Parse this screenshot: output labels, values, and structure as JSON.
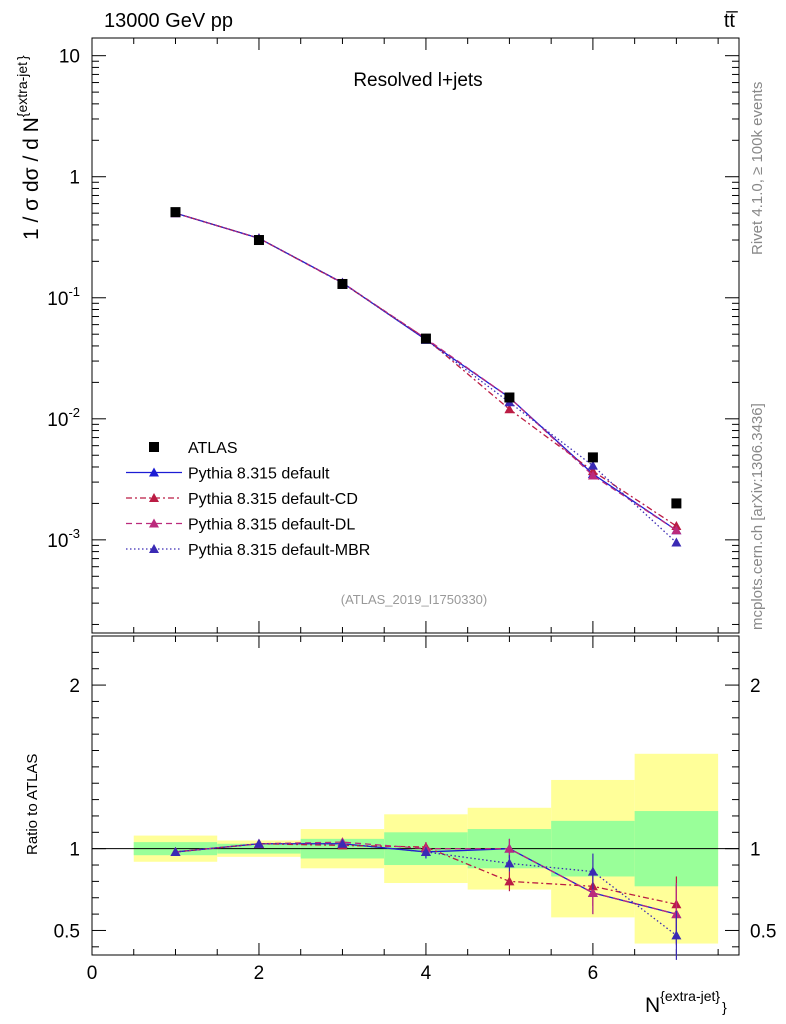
{
  "header": {
    "energy": "13000 GeV pp",
    "process": "tt̅",
    "side_rivet": "Rivet 4.1.0, ≥ 100k events",
    "side_mcplots": "mcplots.cern.ch [arXiv:1306.3436]",
    "watermark": "(ATLAS_2019_I1750330)"
  },
  "chart_data": {
    "type": "line",
    "title": "Resolved l+jets",
    "xlabel": "N",
    "xlabel_sup": "{extra-jet}",
    "xlabel_close": "}",
    "ylabel": "1 / σ dσ / d N",
    "ylabel_sup": "{extra-jet",
    "ylabel_close": "}",
    "ratio_ylabel": "Ratio to ATLAS",
    "xlim": [
      0,
      7.75
    ],
    "ylim": [
      0.00017,
      14
    ],
    "ratio_ylim": [
      0.35,
      2.3
    ],
    "x_ticks": [
      "0",
      "2",
      "4",
      "6"
    ],
    "y_ticks": [
      {
        "base": "10",
        "exp": "-3",
        "v": 0.001
      },
      {
        "base": "10",
        "exp": "-2",
        "v": 0.01
      },
      {
        "base": "10",
        "exp": "-1",
        "v": 0.1
      },
      {
        "base": "1",
        "exp": "",
        "v": 1
      },
      {
        "base": "10",
        "exp": "",
        "v": 10
      }
    ],
    "ratio_ticks": [
      "0.5",
      "1",
      "2"
    ],
    "x": [
      1,
      2,
      3,
      4,
      5,
      6,
      7
    ],
    "data": {
      "name": "ATLAS",
      "values": [
        0.51,
        0.3,
        0.13,
        0.046,
        0.015,
        0.0048,
        0.002
      ],
      "band_inner": [
        [
          0.96,
          1.04
        ],
        [
          0.97,
          1.03
        ],
        [
          0.94,
          1.06
        ],
        [
          0.9,
          1.1
        ],
        [
          0.88,
          1.12
        ],
        [
          0.83,
          1.17
        ],
        [
          0.77,
          1.23
        ]
      ],
      "band_outer": [
        [
          0.92,
          1.08
        ],
        [
          0.95,
          1.05
        ],
        [
          0.88,
          1.12
        ],
        [
          0.79,
          1.21
        ],
        [
          0.75,
          1.25
        ],
        [
          0.58,
          1.42
        ],
        [
          0.42,
          1.58
        ]
      ]
    },
    "series": [
      {
        "name": "Pythia 8.315 default",
        "color": "#1c1cd4",
        "dash": "",
        "values": [
          0.5,
          0.31,
          0.133,
          0.045,
          0.015,
          0.0035,
          0.0012
        ],
        "ratio": [
          0.98,
          1.03,
          1.03,
          0.98,
          1.0,
          0.73,
          0.6
        ],
        "ratio_err": [
          0.01,
          0.01,
          0.02,
          0.04,
          0.06,
          0.13,
          0.18
        ]
      },
      {
        "name": "Pythia 8.315 default-CD",
        "color": "#bb1c44",
        "dash": "6,3,2,3",
        "values": [
          0.5,
          0.31,
          0.132,
          0.046,
          0.012,
          0.0037,
          0.0013
        ],
        "ratio": [
          0.98,
          1.03,
          1.02,
          1.01,
          0.8,
          0.77,
          0.66
        ],
        "ratio_err": [
          0.01,
          0.01,
          0.02,
          0.03,
          0.06,
          0.12,
          0.17
        ]
      },
      {
        "name": "Pythia 8.315 default-DL",
        "color": "#bb2a7c",
        "dash": "6,4",
        "values": [
          0.5,
          0.31,
          0.133,
          0.046,
          0.015,
          0.0034,
          0.0012
        ],
        "ratio": [
          0.98,
          1.03,
          1.04,
          1.0,
          1.0,
          0.73,
          0.6
        ],
        "ratio_err": [
          0.01,
          0.01,
          0.02,
          0.04,
          0.06,
          0.13,
          0.19
        ]
      },
      {
        "name": "Pythia 8.315 default-MBR",
        "color": "#3a2ab4",
        "dash": "1.5,2.5",
        "values": [
          0.5,
          0.31,
          0.133,
          0.045,
          0.0137,
          0.0041,
          0.00095
        ],
        "ratio": [
          0.98,
          1.03,
          1.03,
          0.98,
          0.91,
          0.86,
          0.47
        ],
        "ratio_err": [
          0.01,
          0.01,
          0.02,
          0.03,
          0.05,
          0.11,
          0.15
        ]
      }
    ],
    "band_colors": {
      "outer": "#ffff99",
      "inner": "#99ff99"
    }
  }
}
